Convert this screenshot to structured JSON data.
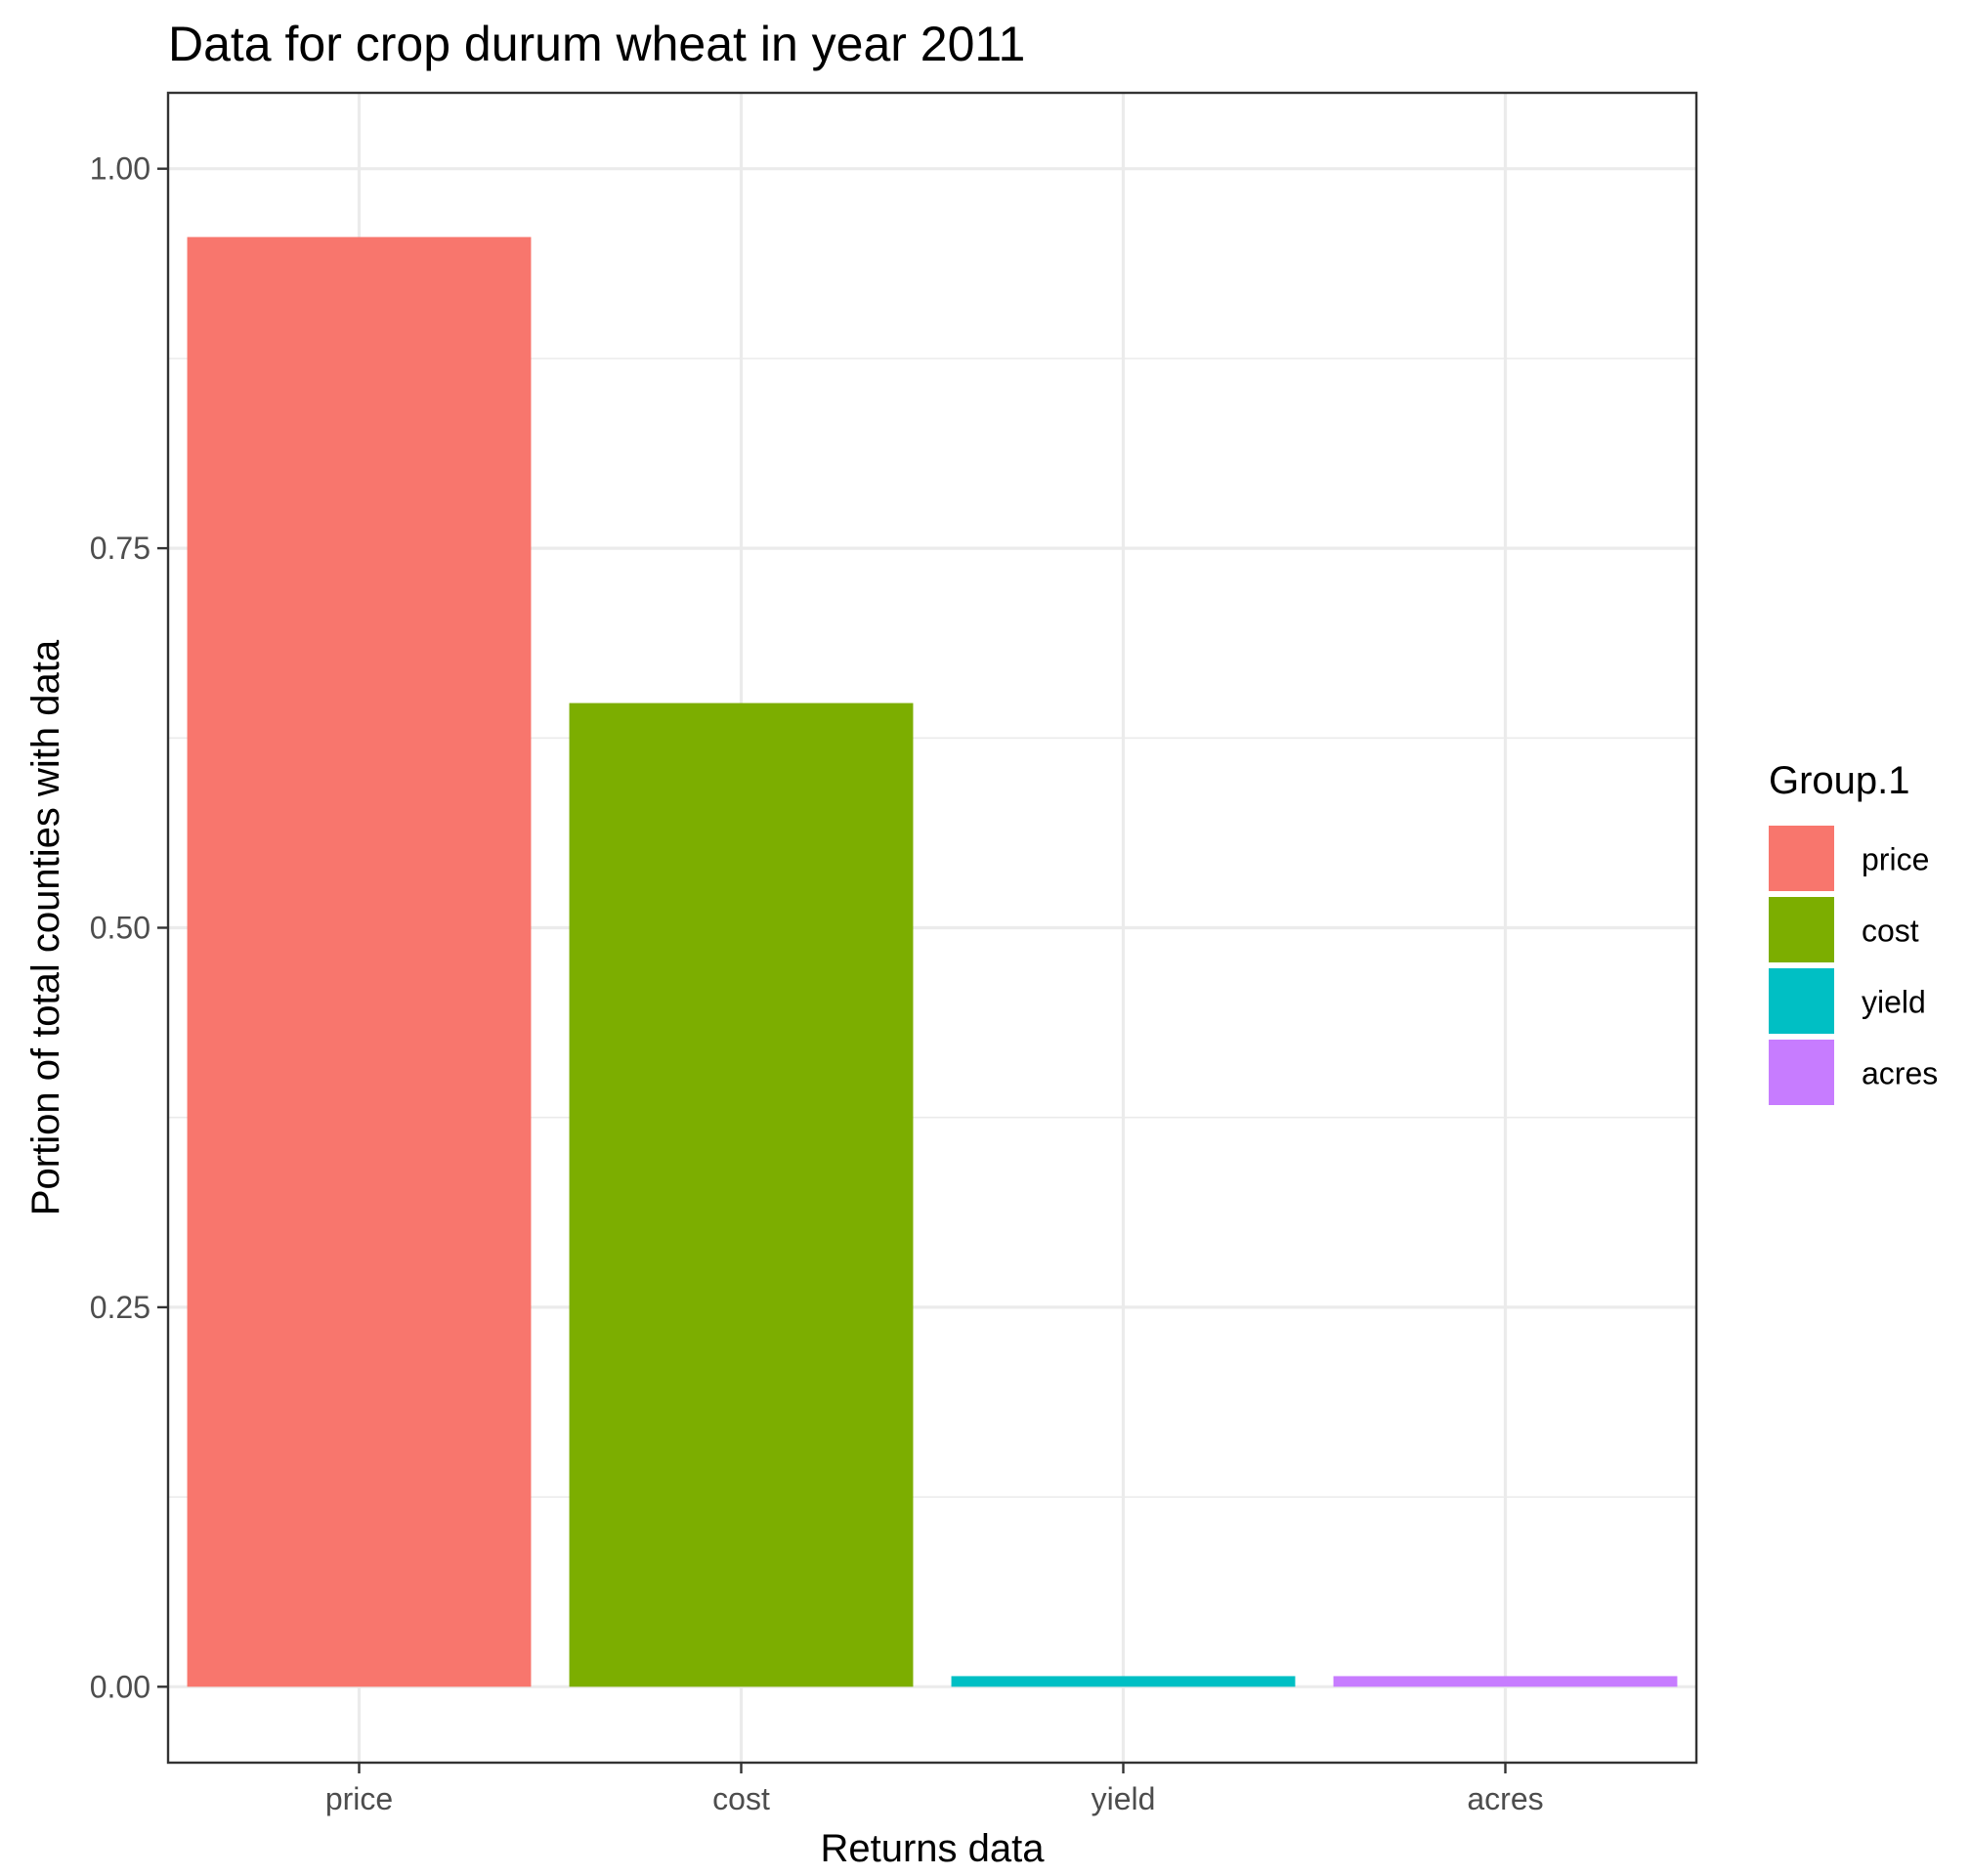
{
  "chart_data": {
    "type": "bar",
    "title": "Data for crop durum wheat in year 2011",
    "xlabel": "Returns data",
    "ylabel": "Portion of total counties with data",
    "categories": [
      "price",
      "cost",
      "yield",
      "acres"
    ],
    "values": [
      0.955,
      0.648,
      0.007,
      0.007
    ],
    "colors": [
      "#F8766D",
      "#7CAE00",
      "#00BFC4",
      "#C77CFF"
    ],
    "ylim": [
      -0.05,
      1.05
    ],
    "yticks": [
      0.0,
      0.25,
      0.5,
      0.75,
      1.0
    ],
    "ytick_labels": [
      "0.00",
      "0.25",
      "0.50",
      "0.75",
      "1.00"
    ],
    "grid": true,
    "legend": {
      "title": "Group.1",
      "placement": "right",
      "entries": [
        "price",
        "cost",
        "yield",
        "acres"
      ]
    }
  }
}
